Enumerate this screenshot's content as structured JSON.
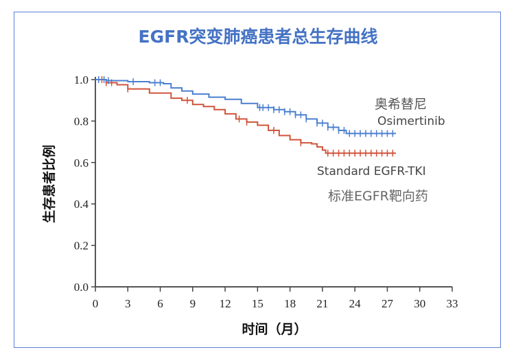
{
  "chart_data": {
    "type": "line",
    "title": "EGFR突变肺癌患者总生存曲线",
    "xlabel": "时间（月）",
    "ylabel": "生存患者比例",
    "xlim": [
      0,
      33
    ],
    "ylim": [
      0,
      1.0
    ],
    "xticks": [
      "0",
      "3",
      "6",
      "9",
      "12",
      "15",
      "18",
      "21",
      "24",
      "27",
      "30",
      "33"
    ],
    "yticks": [
      "0.0",
      "0.2",
      "0.4",
      "0.6",
      "0.8",
      "1.0"
    ],
    "grid": false,
    "series": [
      {
        "name": "Osimertinib",
        "label_cn": "奥希替尼",
        "label_en": "Osimertinib",
        "color": "#4a7fcf",
        "x": [
          0,
          1,
          3,
          5,
          6.3,
          7,
          8,
          9,
          10.5,
          12,
          13.5,
          15,
          16.5,
          17.5,
          18.5,
          19.5,
          20.5,
          21.5,
          22.5,
          23.2,
          27.8
        ],
        "y": [
          1.0,
          0.995,
          0.99,
          0.985,
          0.98,
          0.96,
          0.945,
          0.93,
          0.915,
          0.905,
          0.885,
          0.865,
          0.855,
          0.845,
          0.83,
          0.81,
          0.79,
          0.77,
          0.755,
          0.74,
          0.74
        ],
        "censor_x": [
          0.3,
          0.8,
          1.2,
          3.5,
          5.5,
          6,
          15.2,
          15.5,
          16,
          16.5,
          17,
          17.5,
          18,
          18.5,
          19,
          19.5,
          20.5,
          21,
          21.5,
          22,
          22.5,
          23,
          23.5,
          24,
          24.5,
          25,
          25.5,
          26,
          26.5,
          27,
          27.5
        ]
      },
      {
        "name": "Standard EGFR-TKI",
        "label_cn": "标准EGFR靶向药",
        "label_en": "Standard EGFR-TKI",
        "color": "#d0533a",
        "x": [
          0,
          1,
          2,
          3,
          5,
          7,
          8,
          9,
          10,
          11,
          12,
          13,
          14,
          15,
          16,
          17,
          18,
          19,
          20,
          20.5,
          21,
          21.3,
          27.8
        ],
        "y": [
          1.0,
          0.985,
          0.975,
          0.955,
          0.935,
          0.91,
          0.9,
          0.88,
          0.87,
          0.855,
          0.835,
          0.81,
          0.795,
          0.78,
          0.755,
          0.73,
          0.71,
          0.695,
          0.69,
          0.675,
          0.66,
          0.645,
          0.645
        ],
        "censor_x": [
          0.3,
          0.6,
          1,
          1.5,
          3,
          8.5,
          13.3,
          14,
          16.5,
          19,
          21.5,
          22,
          22.5,
          23,
          23.5,
          24,
          24.5,
          25,
          25.5,
          26,
          26.5,
          27,
          27.5
        ]
      }
    ]
  }
}
